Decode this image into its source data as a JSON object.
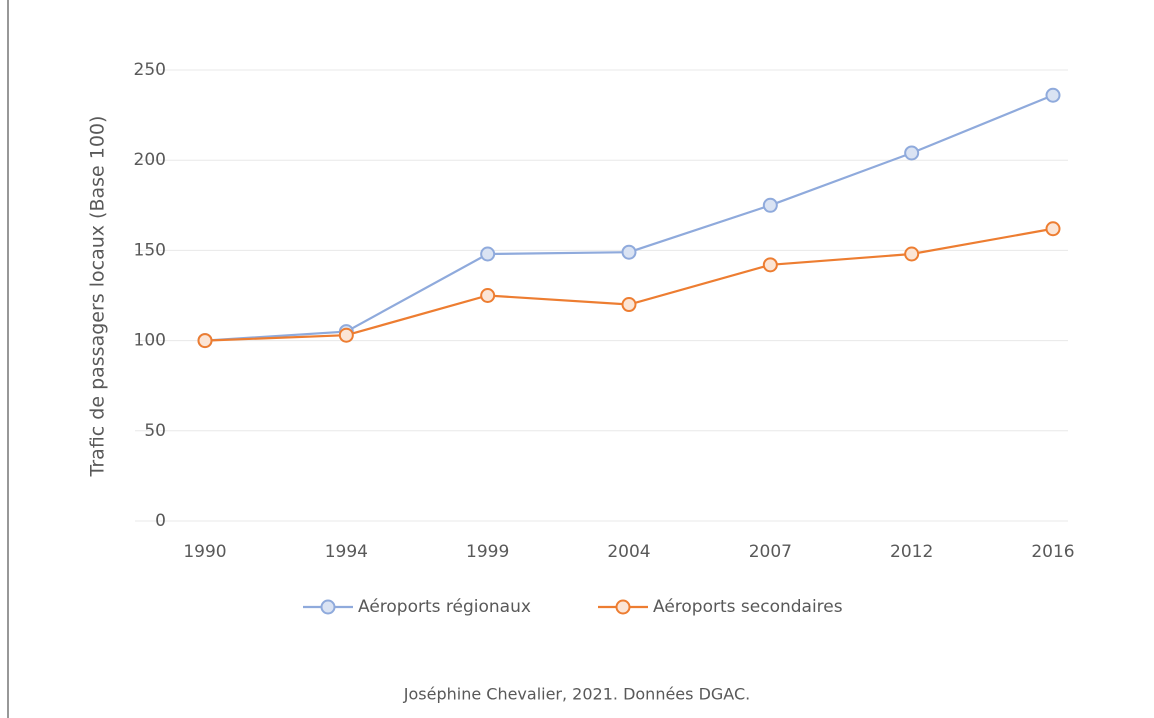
{
  "chart_data": {
    "type": "line",
    "y_label": "Trafic de passagers locaux (Base 100)",
    "source": "Joséphine Chevalier, 2021. Données DGAC.",
    "categories": [
      "1990",
      "1994",
      "1999",
      "2004",
      "2007",
      "2012",
      "2016"
    ],
    "series": [
      {
        "name": "Aéroports régionaux",
        "color": "#8faadc",
        "marker_fill": "#dae3f3",
        "values": [
          100,
          105,
          148,
          149,
          175,
          204,
          236
        ]
      },
      {
        "name": "Aéroports secondaires",
        "color": "#ed7d31",
        "marker_fill": "#fbe5d6",
        "values": [
          100,
          103,
          125,
          120,
          142,
          148,
          162
        ]
      }
    ],
    "ylim": [
      0,
      250
    ],
    "yticks": [
      0,
      50,
      100,
      150,
      200,
      250
    ],
    "grid": true,
    "legend": "bottom"
  }
}
